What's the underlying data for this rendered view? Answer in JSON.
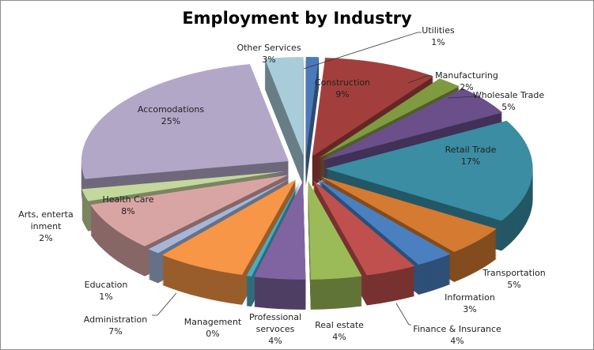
{
  "chart_data": {
    "type": "pie",
    "title": "Employment by Industry",
    "style": "3d-exploded",
    "start": "top, clockwise",
    "slices": [
      {
        "label": "Utilities",
        "value": 1,
        "value_label": "1%",
        "color": "#4a7ab8"
      },
      {
        "label": "Construction",
        "value": 9,
        "value_label": "9%",
        "color": "#a23f3c"
      },
      {
        "label": "Manufacturing",
        "value": 2,
        "value_label": "2%",
        "color": "#7f9a40"
      },
      {
        "label": "Wholesale Trade",
        "value": 5,
        "value_label": "5%",
        "color": "#6a4f8b"
      },
      {
        "label": "Retail Trade",
        "value": 17,
        "value_label": "17%",
        "color": "#3a8da3"
      },
      {
        "label": "Transportation",
        "value": 5,
        "value_label": "5%",
        "color": "#d47a31"
      },
      {
        "label": "Information",
        "value": 3,
        "value_label": "3%",
        "color": "#4a7fc0"
      },
      {
        "label": "Finance & Insurance",
        "value": 4,
        "value_label": "4%",
        "color": "#c0504d"
      },
      {
        "label": "Real estate",
        "value": 4,
        "value_label": "4%",
        "color": "#9bbb59"
      },
      {
        "label": "Professional servoces",
        "value": 4,
        "value_label": "4%",
        "color": "#8064a2"
      },
      {
        "label": "Management",
        "value": 0,
        "value_label": "0%",
        "color": "#4bacc6"
      },
      {
        "label": "Administration",
        "value": 7,
        "value_label": "7%",
        "color": "#f79646"
      },
      {
        "label": "Education",
        "value": 1,
        "value_label": "1%",
        "color": "#a5b6d9"
      },
      {
        "label": "Health Care",
        "value": 8,
        "value_label": "8%",
        "color": "#d9a5a4"
      },
      {
        "label": "Arts, entertainment",
        "value": 2,
        "value_label": "2%",
        "color": "#c4d79c"
      },
      {
        "label": "Accomodations",
        "value": 25,
        "value_label": "25%",
        "color": "#b3a7c8"
      },
      {
        "label": "Other Services",
        "value": 3,
        "value_label": "3%",
        "color": "#a8ccda"
      }
    ]
  }
}
